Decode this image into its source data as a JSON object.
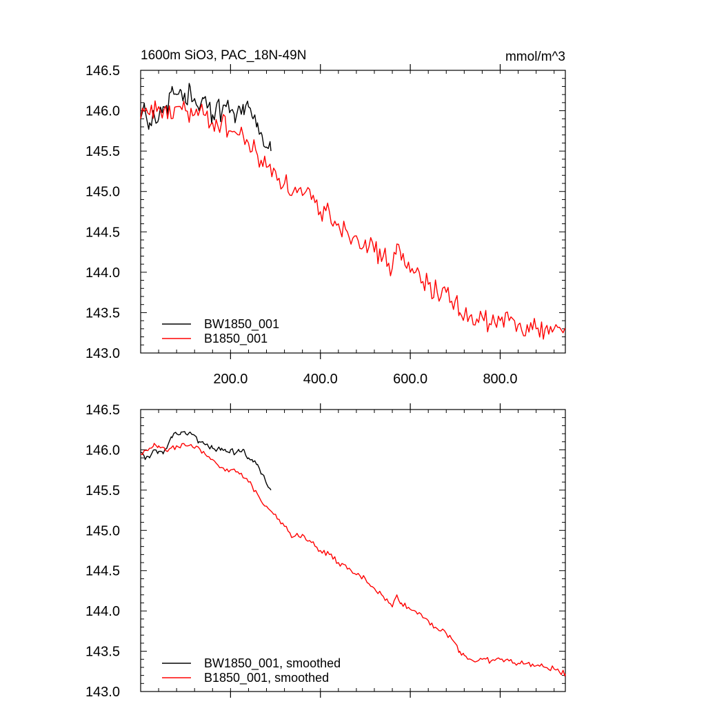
{
  "figure": {
    "title": "1600m SiO3, PAC_18N-49N",
    "units": "mmol/m^3"
  },
  "chart_data": [
    {
      "type": "line",
      "title": "1600m SiO3, PAC_18N-49N",
      "units": "mmol/m^3",
      "xlabel": "",
      "ylabel": "",
      "xlim": [
        0,
        945
      ],
      "ylim": [
        143.0,
        146.5
      ],
      "x_ticks": [
        200,
        400,
        600,
        800
      ],
      "x_tick_labels": [
        "200.0",
        "400.0",
        "600.0",
        "800.0"
      ],
      "y_ticks": [
        143.0,
        143.5,
        144.0,
        144.5,
        145.0,
        145.5,
        146.0,
        146.5
      ],
      "y_tick_labels": [
        "143.0",
        "143.5",
        "144.0",
        "144.5",
        "145.0",
        "145.5",
        "146.0",
        "146.5"
      ],
      "legend": "bottom-left",
      "series": [
        {
          "name": "BW1850_001",
          "color": "#000000",
          "x": [
            0,
            10,
            20,
            30,
            40,
            50,
            60,
            70,
            80,
            90,
            100,
            110,
            120,
            130,
            140,
            150,
            160,
            170,
            180,
            190,
            200,
            210,
            220,
            230,
            240,
            250,
            260,
            270,
            280,
            290
          ],
          "values": [
            145.9,
            146.0,
            145.85,
            145.95,
            145.9,
            146.05,
            145.95,
            146.3,
            146.2,
            146.25,
            146.1,
            146.3,
            146.15,
            146.0,
            146.15,
            146.05,
            145.95,
            146.1,
            145.95,
            146.05,
            146.0,
            145.85,
            146.05,
            145.95,
            146.05,
            145.9,
            145.85,
            145.7,
            145.55,
            145.5
          ]
        },
        {
          "name": "B1850_001",
          "color": "#ff0000",
          "x": [
            0,
            20,
            40,
            60,
            80,
            100,
            120,
            140,
            160,
            180,
            200,
            220,
            240,
            260,
            280,
            300,
            320,
            340,
            360,
            380,
            400,
            420,
            440,
            460,
            480,
            500,
            520,
            540,
            560,
            570,
            580,
            600,
            620,
            640,
            660,
            680,
            700,
            710,
            720,
            740,
            760,
            780,
            800,
            820,
            840,
            860,
            880,
            900,
            920,
            940,
            945
          ],
          "values": [
            145.9,
            145.95,
            146.05,
            145.9,
            146.05,
            146.0,
            145.95,
            145.95,
            145.85,
            145.85,
            145.75,
            145.7,
            145.6,
            145.45,
            145.3,
            145.25,
            145.1,
            145.0,
            144.95,
            144.9,
            144.75,
            144.75,
            144.6,
            144.5,
            144.45,
            144.4,
            144.25,
            144.2,
            144.05,
            144.35,
            144.15,
            144.0,
            144.0,
            143.85,
            143.75,
            143.75,
            143.65,
            143.5,
            143.45,
            143.35,
            143.45,
            143.35,
            143.4,
            143.4,
            143.35,
            143.35,
            143.3,
            143.3,
            143.3,
            143.25,
            143.3
          ]
        }
      ]
    },
    {
      "type": "line",
      "title": "",
      "xlabel": "",
      "ylabel": "",
      "xlim": [
        0,
        945
      ],
      "ylim": [
        143.0,
        146.5
      ],
      "x_ticks": [
        200,
        400,
        600,
        800
      ],
      "x_tick_labels": [],
      "y_ticks": [
        143.0,
        143.5,
        144.0,
        144.5,
        145.0,
        145.5,
        146.0,
        146.5
      ],
      "y_tick_labels": [
        "143.0",
        "143.5",
        "144.0",
        "144.5",
        "145.0",
        "145.5",
        "146.0",
        "146.5"
      ],
      "legend": "bottom-left",
      "series": [
        {
          "name": "BW1850_001, smoothed",
          "color": "#000000",
          "x": [
            0,
            10,
            20,
            30,
            40,
            50,
            60,
            70,
            80,
            90,
            100,
            110,
            120,
            130,
            140,
            150,
            160,
            170,
            180,
            190,
            200,
            210,
            220,
            230,
            240,
            250,
            260,
            270,
            280,
            290
          ],
          "values": [
            145.97,
            145.88,
            145.9,
            146.0,
            145.98,
            145.95,
            146.05,
            146.15,
            146.2,
            146.22,
            146.2,
            146.22,
            146.18,
            146.1,
            146.08,
            146.05,
            146.02,
            146.0,
            146.02,
            145.98,
            146.0,
            145.95,
            145.98,
            146.0,
            145.9,
            145.85,
            145.82,
            145.7,
            145.58,
            145.5
          ]
        },
        {
          "name": "B1850_001, smoothed",
          "color": "#ff0000",
          "x": [
            0,
            20,
            30,
            40,
            60,
            80,
            100,
            120,
            140,
            160,
            180,
            200,
            220,
            240,
            260,
            280,
            300,
            320,
            340,
            360,
            380,
            400,
            420,
            440,
            460,
            480,
            500,
            520,
            540,
            560,
            570,
            580,
            600,
            620,
            640,
            660,
            680,
            700,
            710,
            720,
            740,
            760,
            780,
            800,
            820,
            840,
            860,
            880,
            900,
            920,
            945
          ],
          "values": [
            145.95,
            146.02,
            146.08,
            146.05,
            145.98,
            146.05,
            146.05,
            146.02,
            145.98,
            145.88,
            145.78,
            145.75,
            145.7,
            145.6,
            145.45,
            145.3,
            145.2,
            145.05,
            144.92,
            144.95,
            144.85,
            144.75,
            144.7,
            144.6,
            144.52,
            144.45,
            144.4,
            144.28,
            144.18,
            144.05,
            144.2,
            144.1,
            144.02,
            143.98,
            143.88,
            143.78,
            143.72,
            143.6,
            143.5,
            143.45,
            143.38,
            143.4,
            143.38,
            143.4,
            143.38,
            143.35,
            143.35,
            143.32,
            143.3,
            143.28,
            143.22
          ]
        }
      ]
    }
  ]
}
